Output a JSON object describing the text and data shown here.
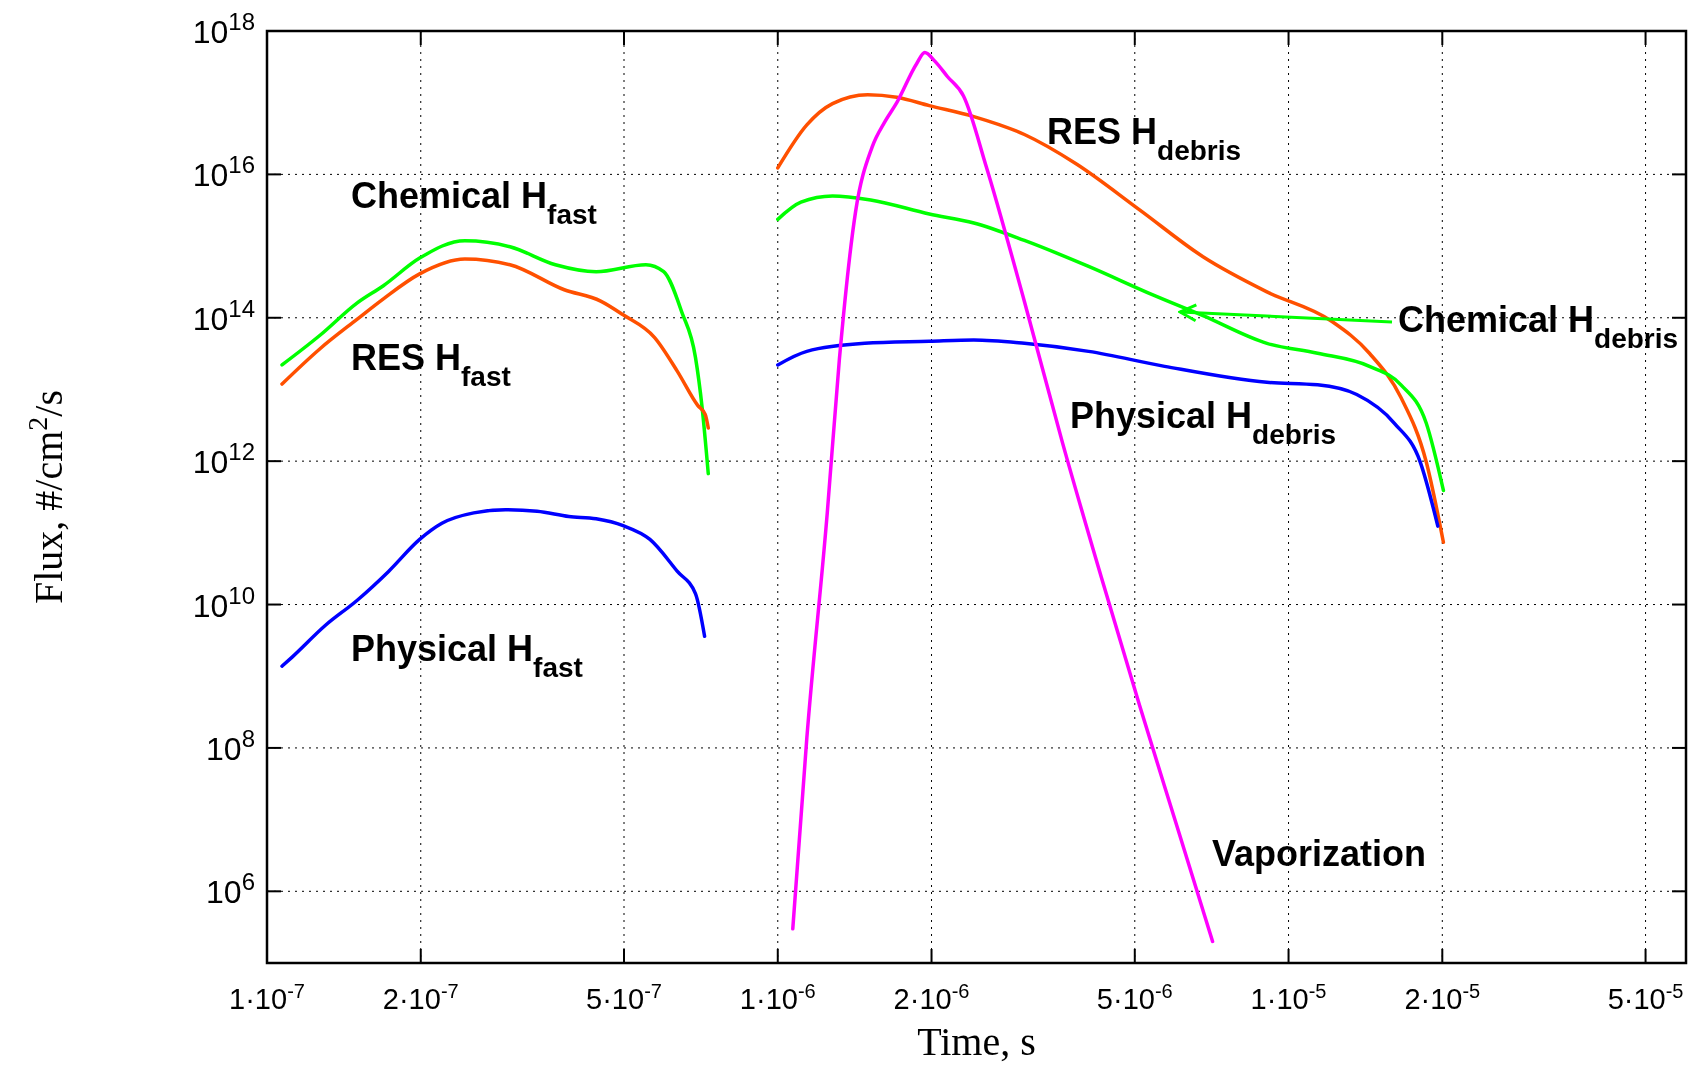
{
  "chart_data": {
    "type": "line",
    "xlabel": "Time, s",
    "ylabel": "Flux, #/cm$^{2}$/s",
    "log": "xy",
    "grid": true,
    "marker": "none",
    "line_style": "solid",
    "xlim": [
      1e-07,
      6e-05
    ],
    "ylim": [
      100000.0,
      1e+18
    ],
    "xticks": [
      {
        "value": 1e-07,
        "label": "1·10$^{-7}$"
      },
      {
        "value": 2e-07,
        "label": "2·10$^{-7}$"
      },
      {
        "value": 5e-07,
        "label": "5·10$^{-7}$"
      },
      {
        "value": 1e-06,
        "label": "1·10$^{-6}$"
      },
      {
        "value": 2e-06,
        "label": "2·10$^{-6}$"
      },
      {
        "value": 5e-06,
        "label": "5·10$^{-6}$"
      },
      {
        "value": 1e-05,
        "label": "1·10$^{-5}$"
      },
      {
        "value": 2e-05,
        "label": "2·10$^{-5}$"
      },
      {
        "value": 5e-05,
        "label": "5·10$^{-5}$"
      }
    ],
    "yticks": [
      {
        "value": 1000000.0,
        "label": "10$^{6}$"
      },
      {
        "value": 100000000.0,
        "label": "10$^{8}$"
      },
      {
        "value": 10000000000.0,
        "label": "10$^{10}$"
      },
      {
        "value": 1000000000000.0,
        "label": "10$^{12}$"
      },
      {
        "value": 100000000000000.0,
        "label": "10$^{14}$"
      },
      {
        "value": 1e+16,
        "label": "10$^{16}$"
      },
      {
        "value": 1e+18,
        "label": "10$^{18}$"
      }
    ],
    "series": [
      {
        "name": "Chemical H$_{fast}$",
        "color": "#00ff00",
        "x": [
          1.07e-07,
          1.27e-07,
          1.5e-07,
          1.69e-07,
          1.99e-07,
          2.44e-07,
          2.99e-07,
          3.67e-07,
          4.41e-07,
          5.52e-07,
          5.98e-07,
          6.49e-07,
          6.9e-07,
          7.11e-07,
          7.31e-07
        ],
        "values": [
          22000000000000.0,
          57000000000000.0,
          160000000000000.0,
          280000000000000.0,
          680000000000000.0,
          1190000000000000.0,
          980000000000000.0,
          550000000000000.0,
          440000000000000.0,
          550000000000000.0,
          440000000000000.0,
          119000000000000.0,
          28000000000000.0,
          5600000000000.0,
          670000000000.0
        ]
      },
      {
        "name": "RES H$_{fast}$",
        "color": "#ff5000",
        "x": [
          1.07e-07,
          1.27e-07,
          1.5e-07,
          1.69e-07,
          1.99e-07,
          2.44e-07,
          2.99e-07,
          3.82e-07,
          4.5e-07,
          4.98e-07,
          5.74e-07,
          6.36e-07,
          6.97e-07,
          7.21e-07,
          7.31e-07
        ],
        "values": [
          11900000000000.0,
          37000000000000.0,
          95000000000000.0,
          184000000000000.0,
          410000000000000.0,
          660000000000000.0,
          550000000000000.0,
          246000000000000.0,
          171000000000000.0,
          110000000000000.0,
          53000000000000.0,
          17900000000000.0,
          6000000000000.0,
          4500000000000.0,
          2900000000000.0
        ]
      },
      {
        "name": "Physical H$_{fast}$",
        "color": "#0000ff",
        "x": [
          1.07e-07,
          1.12e-07,
          1.3e-07,
          1.5e-07,
          1.73e-07,
          1.99e-07,
          2.2e-07,
          2.54e-07,
          2.93e-07,
          3.38e-07,
          3.9e-07,
          4.41e-07,
          4.98e-07,
          5.62e-07,
          6.36e-07,
          6.9e-07,
          7.19e-07
        ],
        "values": [
          1380000000.0,
          1850000000.0,
          5100000000.0,
          11400000000.0,
          29000000000.0,
          81000000000.0,
          136000000000.0,
          190000000000.0,
          210000000000.0,
          200000000000.0,
          169000000000.0,
          157000000000.0,
          126000000000.0,
          81000000000.0,
          29000000000.0,
          14200000000.0,
          3600000000.0
        ]
      },
      {
        "name": "RES H$_{debris}$",
        "color": "#ff5000",
        "x": [
          1e-06,
          1.14e-06,
          1.28e-06,
          1.5e-06,
          1.71e-06,
          1.98e-06,
          2.42e-06,
          3.04e-06,
          3.83e-06,
          5.11e-06,
          6.8e-06,
          9.07e-06,
          1.21e-05,
          1.44e-05,
          1.66e-05,
          1.86e-05,
          2.01e-05
        ],
        "values": [
          1.23e+16,
          4.9e+16,
          9.7e+16,
          1.29e+17,
          1.19e+17,
          9.1e+16,
          6.4e+16,
          3.6e+16,
          1.42e+16,
          3200000000000000.0,
          710000000000000.0,
          230000000000000.0,
          91000000000000.0,
          32000000000000.0,
          7700000000000.0,
          980000000000.0,
          74000000000.0
        ]
      },
      {
        "name": "Chemical H$_{debris}$",
        "color": "#00ff00",
        "x": [
          1e-06,
          1.11e-06,
          1.28e-06,
          1.52e-06,
          1.98e-06,
          2.42e-06,
          3.04e-06,
          4.06e-06,
          5.41e-06,
          6.8e-06,
          9.07e-06,
          1.14e-05,
          1.44e-05,
          1.66e-05,
          1.86e-05,
          2.01e-05
        ],
        "values": [
          2360000000000000.0,
          4100000000000000.0,
          5000000000000000.0,
          4400000000000000.0,
          2800000000000000.0,
          2100000000000000.0,
          1200000000000000.0,
          520000000000000.0,
          210000000000000.0,
          107000000000000.0,
          44000000000000.0,
          32000000000000.0,
          21000000000000.0,
          11600000000000.0,
          3400000000000.0,
          390000000000.0
        ]
      },
      {
        "name": "Physical H$_{debris}$",
        "color": "#0000ff",
        "x": [
          1e-06,
          1.14e-06,
          1.48e-06,
          1.98e-06,
          2.42e-06,
          3.04e-06,
          4.06e-06,
          5.72e-06,
          9.07e-06,
          1.14e-05,
          1.36e-05,
          1.61e-05,
          1.81e-05,
          1.96e-05
        ],
        "values": [
          22000000000000.0,
          34000000000000.0,
          44000000000000.0,
          47000000000000.0,
          49000000000000.0,
          44000000000000.0,
          34000000000000.0,
          21000000000000.0,
          12600000000000.0,
          11600000000000.0,
          8500000000000.0,
          3400000000000.0,
          980000000000.0,
          124000000000.0
        ]
      },
      {
        "name": "Vaporization",
        "color": "#ff00ff",
        "x": [
          1.07e-06,
          1.14e-06,
          1.25e-06,
          1.32e-06,
          1.42e-06,
          1.53e-06,
          1.62e-06,
          1.71e-06,
          1.87e-06,
          1.94e-06,
          2.03e-06,
          2.15e-06,
          2.31e-06,
          2.56e-06,
          3.04e-06,
          3.61e-06,
          4.3e-06,
          5.11e-06,
          6.06e-06,
          7.1e-06
        ],
        "values": [
          300000.0,
          138000000.0,
          190000000000.0,
          26000000000000.0,
          3000000000000000.0,
          2.4e+16,
          5.4e+16,
          1e+17,
          3.5e+17,
          5e+17,
          3.8e+17,
          2.3e+17,
          1.24e+17,
          1.28e+16,
          169000000000000.0,
          1800000000000.0,
          24000000000.0,
          390000000.0,
          7700000.0,
          200000.0
        ]
      }
    ]
  }
}
